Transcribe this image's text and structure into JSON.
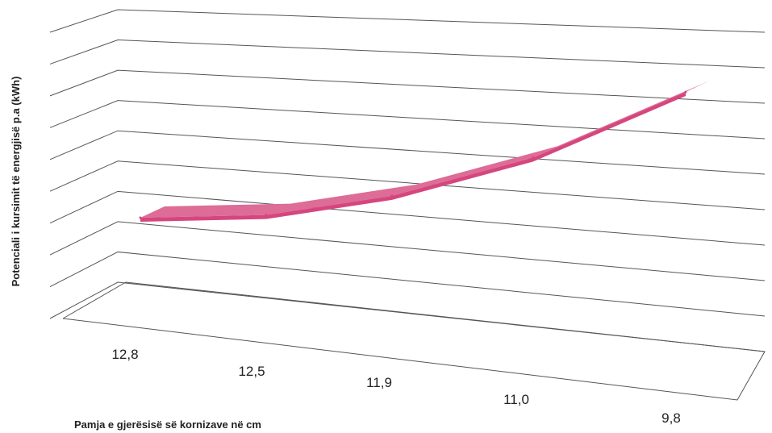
{
  "chart_data": {
    "type": "line",
    "categories": [
      "12,8",
      "12,5",
      "11,9",
      "11,0",
      "9,8"
    ],
    "series": [
      {
        "values": [
          2.1,
          2.2,
          2.9,
          4.3,
          6.7
        ],
        "color": "#d6467e"
      }
    ],
    "ylim": [
      0,
      9
    ],
    "xlabel": "Pamja e gjerësisë së kornizave në cm",
    "ylabel": "Potenciali i kursimit të energjisë p.a (kWh)",
    "grid": true,
    "legend": "none",
    "style": "3d"
  }
}
